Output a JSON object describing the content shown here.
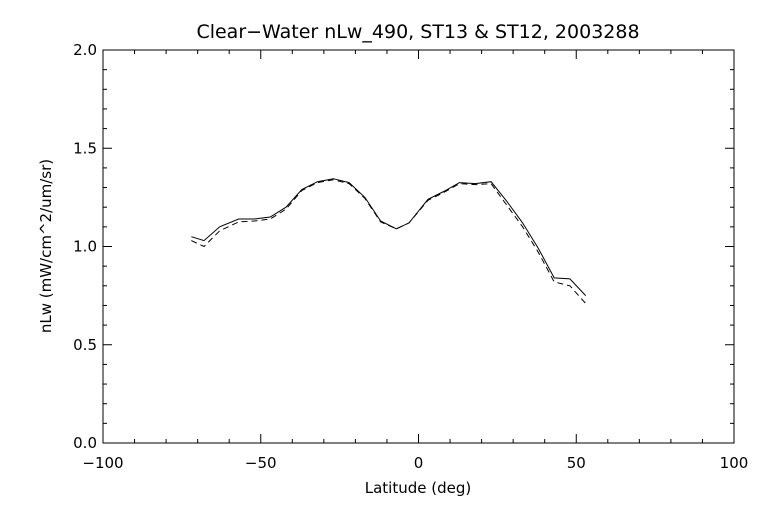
{
  "chart_data": {
    "type": "line",
    "title": "Clear−Water nLw_490, ST13 & ST12, 2003288",
    "xlabel": "Latitude (deg)",
    "ylabel": "nLw (mW/cm^2/um/sr)",
    "xlim": [
      -100,
      100
    ],
    "ylim": [
      0.0,
      2.0
    ],
    "x_ticks": [
      -100,
      -50,
      0,
      50,
      100
    ],
    "x_tick_labels": [
      "−100",
      "−50",
      "0",
      "50",
      "100"
    ],
    "y_ticks": [
      0.0,
      0.5,
      1.0,
      1.5,
      2.0
    ],
    "y_tick_labels": [
      "0.0",
      "0.5",
      "1.0",
      "1.5",
      "2.0"
    ],
    "grid": false,
    "series": [
      {
        "style": "solid",
        "color": "#000000",
        "x": [
          -72,
          -68,
          -63,
          -57,
          -52,
          -47,
          -42,
          -37,
          -32,
          -27,
          -22,
          -17,
          -12,
          -7,
          -3,
          3,
          8,
          13,
          18,
          23,
          28,
          33,
          38,
          43,
          48,
          53
        ],
        "y": [
          1.05,
          1.03,
          1.1,
          1.14,
          1.14,
          1.15,
          1.2,
          1.29,
          1.33,
          1.345,
          1.325,
          1.25,
          1.13,
          1.09,
          1.12,
          1.24,
          1.28,
          1.325,
          1.32,
          1.33,
          1.23,
          1.12,
          0.99,
          0.84,
          0.835,
          0.75
        ]
      },
      {
        "style": "dashed",
        "color": "#000000",
        "x": [
          -72,
          -68,
          -63,
          -57,
          -52,
          -47,
          -42,
          -37,
          -32,
          -27,
          -22,
          -17,
          -12,
          -7,
          -3,
          3,
          8,
          13,
          18,
          23,
          28,
          33,
          38,
          43,
          48,
          53
        ],
        "y": [
          1.03,
          1.0,
          1.08,
          1.125,
          1.13,
          1.14,
          1.19,
          1.285,
          1.325,
          1.34,
          1.32,
          1.245,
          1.125,
          1.09,
          1.12,
          1.235,
          1.275,
          1.32,
          1.315,
          1.32,
          1.21,
          1.1,
          0.97,
          0.82,
          0.8,
          0.71
        ]
      }
    ]
  }
}
